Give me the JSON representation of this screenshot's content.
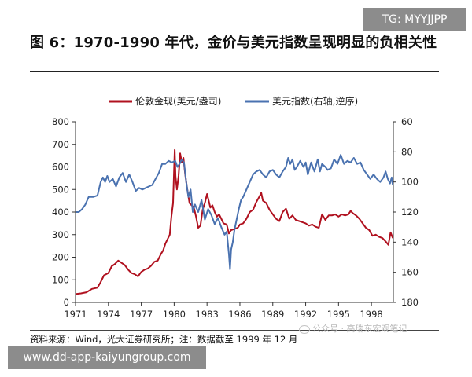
{
  "tg_label": "TG: MYYJJPP",
  "title": "图 6：1970-1990 年代，金价与美元指数呈现明显的负相关性",
  "source": "资料来源：Wind，光大证券研究所；注：数据截至 1999 年 12 月",
  "watermark": "公众号 · 高瑞东宏观笔记",
  "url_label": "www.dd-app-kaiyungroup.com",
  "chart_data": {
    "type": "line",
    "x_ticks": [
      "1971",
      "1974",
      "1977",
      "1980",
      "1983",
      "1986",
      "1989",
      "1992",
      "1995",
      "1998"
    ],
    "left_ticks": [
      "800",
      "700",
      "600",
      "500",
      "400",
      "300",
      "200",
      "100",
      "0"
    ],
    "right_ticks": [
      "60",
      "80",
      "100",
      "120",
      "140",
      "160",
      "180"
    ],
    "left_axis": {
      "min": 0,
      "max": 800,
      "scale": "linear"
    },
    "right_axis": {
      "min": 60,
      "max": 180,
      "inverted": true
    },
    "legend_position": "top-center",
    "grid": false,
    "series": [
      {
        "name": "伦敦金现(美元/盎司)",
        "axis": "left",
        "color": "#b0111f",
        "points": [
          [
            1971.0,
            37
          ],
          [
            1971.5,
            40
          ],
          [
            1972.0,
            45
          ],
          [
            1972.5,
            60
          ],
          [
            1973.0,
            65
          ],
          [
            1973.3,
            90
          ],
          [
            1973.6,
            120
          ],
          [
            1974.0,
            130
          ],
          [
            1974.3,
            160
          ],
          [
            1974.6,
            170
          ],
          [
            1974.9,
            185
          ],
          [
            1975.2,
            175
          ],
          [
            1975.5,
            165
          ],
          [
            1975.8,
            145
          ],
          [
            1976.1,
            130
          ],
          [
            1976.4,
            125
          ],
          [
            1976.7,
            115
          ],
          [
            1977.0,
            135
          ],
          [
            1977.3,
            145
          ],
          [
            1977.6,
            150
          ],
          [
            1977.9,
            162
          ],
          [
            1978.2,
            180
          ],
          [
            1978.5,
            185
          ],
          [
            1978.8,
            215
          ],
          [
            1979.0,
            230
          ],
          [
            1979.2,
            260
          ],
          [
            1979.4,
            280
          ],
          [
            1979.6,
            300
          ],
          [
            1979.75,
            380
          ],
          [
            1979.9,
            440
          ],
          [
            1980.0,
            600
          ],
          [
            1980.05,
            675
          ],
          [
            1980.12,
            560
          ],
          [
            1980.25,
            500
          ],
          [
            1980.4,
            560
          ],
          [
            1980.55,
            660
          ],
          [
            1980.7,
            620
          ],
          [
            1980.85,
            640
          ],
          [
            1981.0,
            570
          ],
          [
            1981.2,
            500
          ],
          [
            1981.4,
            440
          ],
          [
            1981.6,
            430
          ],
          [
            1981.8,
            420
          ],
          [
            1982.0,
            380
          ],
          [
            1982.2,
            330
          ],
          [
            1982.4,
            340
          ],
          [
            1982.6,
            410
          ],
          [
            1982.8,
            440
          ],
          [
            1983.0,
            480
          ],
          [
            1983.15,
            450
          ],
          [
            1983.3,
            420
          ],
          [
            1983.5,
            430
          ],
          [
            1983.7,
            400
          ],
          [
            1983.9,
            380
          ],
          [
            1984.1,
            390
          ],
          [
            1984.3,
            370
          ],
          [
            1984.5,
            350
          ],
          [
            1984.8,
            345
          ],
          [
            1985.0,
            305
          ],
          [
            1985.2,
            320
          ],
          [
            1985.5,
            325
          ],
          [
            1985.8,
            330
          ],
          [
            1986.0,
            345
          ],
          [
            1986.3,
            350
          ],
          [
            1986.6,
            370
          ],
          [
            1986.9,
            400
          ],
          [
            1987.2,
            410
          ],
          [
            1987.5,
            445
          ],
          [
            1987.8,
            470
          ],
          [
            1987.95,
            485
          ],
          [
            1988.1,
            450
          ],
          [
            1988.4,
            440
          ],
          [
            1988.7,
            410
          ],
          [
            1989.0,
            390
          ],
          [
            1989.3,
            370
          ],
          [
            1989.6,
            360
          ],
          [
            1989.9,
            400
          ],
          [
            1990.2,
            415
          ],
          [
            1990.5,
            370
          ],
          [
            1990.8,
            385
          ],
          [
            1991.1,
            365
          ],
          [
            1991.4,
            360
          ],
          [
            1991.7,
            355
          ],
          [
            1992.0,
            350
          ],
          [
            1992.3,
            340
          ],
          [
            1992.6,
            345
          ],
          [
            1992.9,
            335
          ],
          [
            1993.2,
            330
          ],
          [
            1993.5,
            390
          ],
          [
            1993.8,
            365
          ],
          [
            1994.1,
            385
          ],
          [
            1994.4,
            385
          ],
          [
            1994.7,
            390
          ],
          [
            1995.0,
            380
          ],
          [
            1995.3,
            390
          ],
          [
            1995.6,
            385
          ],
          [
            1995.9,
            390
          ],
          [
            1996.1,
            405
          ],
          [
            1996.3,
            395
          ],
          [
            1996.6,
            385
          ],
          [
            1996.9,
            370
          ],
          [
            1997.2,
            350
          ],
          [
            1997.5,
            330
          ],
          [
            1997.8,
            320
          ],
          [
            1998.1,
            295
          ],
          [
            1998.4,
            300
          ],
          [
            1998.7,
            290
          ],
          [
            1999.0,
            285
          ],
          [
            1999.3,
            270
          ],
          [
            1999.55,
            255
          ],
          [
            1999.75,
            310
          ],
          [
            1999.95,
            285
          ]
        ]
      },
      {
        "name": "美元指数(右轴,逆序)",
        "axis": "right",
        "color": "#4a72b0",
        "points": [
          [
            1971.0,
            120
          ],
          [
            1971.3,
            120
          ],
          [
            1971.6,
            118
          ],
          [
            1971.9,
            115
          ],
          [
            1972.2,
            110
          ],
          [
            1972.6,
            110
          ],
          [
            1973.0,
            109
          ],
          [
            1973.3,
            100
          ],
          [
            1973.5,
            97
          ],
          [
            1973.7,
            100
          ],
          [
            1973.9,
            96
          ],
          [
            1974.1,
            100
          ],
          [
            1974.4,
            98
          ],
          [
            1974.7,
            103
          ],
          [
            1975.0,
            97
          ],
          [
            1975.3,
            94
          ],
          [
            1975.6,
            100
          ],
          [
            1975.9,
            95
          ],
          [
            1976.2,
            100
          ],
          [
            1976.5,
            106
          ],
          [
            1976.8,
            104
          ],
          [
            1977.1,
            105
          ],
          [
            1977.4,
            104
          ],
          [
            1977.7,
            103
          ],
          [
            1978.0,
            102
          ],
          [
            1978.3,
            98
          ],
          [
            1978.6,
            94
          ],
          [
            1978.9,
            88
          ],
          [
            1979.2,
            88
          ],
          [
            1979.5,
            86
          ],
          [
            1979.8,
            87
          ],
          [
            1980.1,
            86
          ],
          [
            1980.3,
            90
          ],
          [
            1980.5,
            88
          ],
          [
            1980.7,
            85
          ],
          [
            1980.9,
            87
          ],
          [
            1981.1,
            100
          ],
          [
            1981.3,
            110
          ],
          [
            1981.5,
            105
          ],
          [
            1981.7,
            120
          ],
          [
            1981.9,
            115
          ],
          [
            1982.2,
            120
          ],
          [
            1982.5,
            112
          ],
          [
            1982.8,
            125
          ],
          [
            1983.1,
            118
          ],
          [
            1983.4,
            122
          ],
          [
            1983.7,
            128
          ],
          [
            1984.0,
            124
          ],
          [
            1984.3,
            130
          ],
          [
            1984.6,
            135
          ],
          [
            1984.8,
            133
          ],
          [
            1985.0,
            148
          ],
          [
            1985.1,
            158
          ],
          [
            1985.2,
            145
          ],
          [
            1985.35,
            140
          ],
          [
            1985.5,
            132
          ],
          [
            1985.7,
            125
          ],
          [
            1985.9,
            118
          ],
          [
            1986.1,
            112
          ],
          [
            1986.3,
            110
          ],
          [
            1986.6,
            105
          ],
          [
            1986.9,
            100
          ],
          [
            1987.2,
            95
          ],
          [
            1987.5,
            93
          ],
          [
            1987.8,
            92
          ],
          [
            1988.1,
            95
          ],
          [
            1988.4,
            97
          ],
          [
            1988.7,
            93
          ],
          [
            1989.0,
            92
          ],
          [
            1989.3,
            95
          ],
          [
            1989.6,
            97
          ],
          [
            1989.9,
            93
          ],
          [
            1990.2,
            90
          ],
          [
            1990.4,
            84
          ],
          [
            1990.6,
            88
          ],
          [
            1990.8,
            85
          ],
          [
            1991.0,
            92
          ],
          [
            1991.2,
            90
          ],
          [
            1991.5,
            86
          ],
          [
            1991.8,
            90
          ],
          [
            1992.0,
            87
          ],
          [
            1992.2,
            95
          ],
          [
            1992.5,
            87
          ],
          [
            1992.8,
            93
          ],
          [
            1993.1,
            85
          ],
          [
            1993.3,
            93
          ],
          [
            1993.5,
            88
          ],
          [
            1993.8,
            90
          ],
          [
            1994.0,
            92
          ],
          [
            1994.3,
            91
          ],
          [
            1994.6,
            85
          ],
          [
            1994.9,
            88
          ],
          [
            1995.2,
            82
          ],
          [
            1995.5,
            88
          ],
          [
            1995.8,
            86
          ],
          [
            1996.1,
            87
          ],
          [
            1996.4,
            84
          ],
          [
            1996.7,
            88
          ],
          [
            1997.0,
            87
          ],
          [
            1997.3,
            92
          ],
          [
            1997.6,
            95
          ],
          [
            1997.9,
            98
          ],
          [
            1998.2,
            95
          ],
          [
            1998.5,
            98
          ],
          [
            1998.8,
            100
          ],
          [
            1999.1,
            97
          ],
          [
            1999.3,
            93
          ],
          [
            1999.5,
            98
          ],
          [
            1999.7,
            101
          ],
          [
            1999.85,
            97
          ],
          [
            1999.95,
            102
          ]
        ]
      }
    ]
  }
}
